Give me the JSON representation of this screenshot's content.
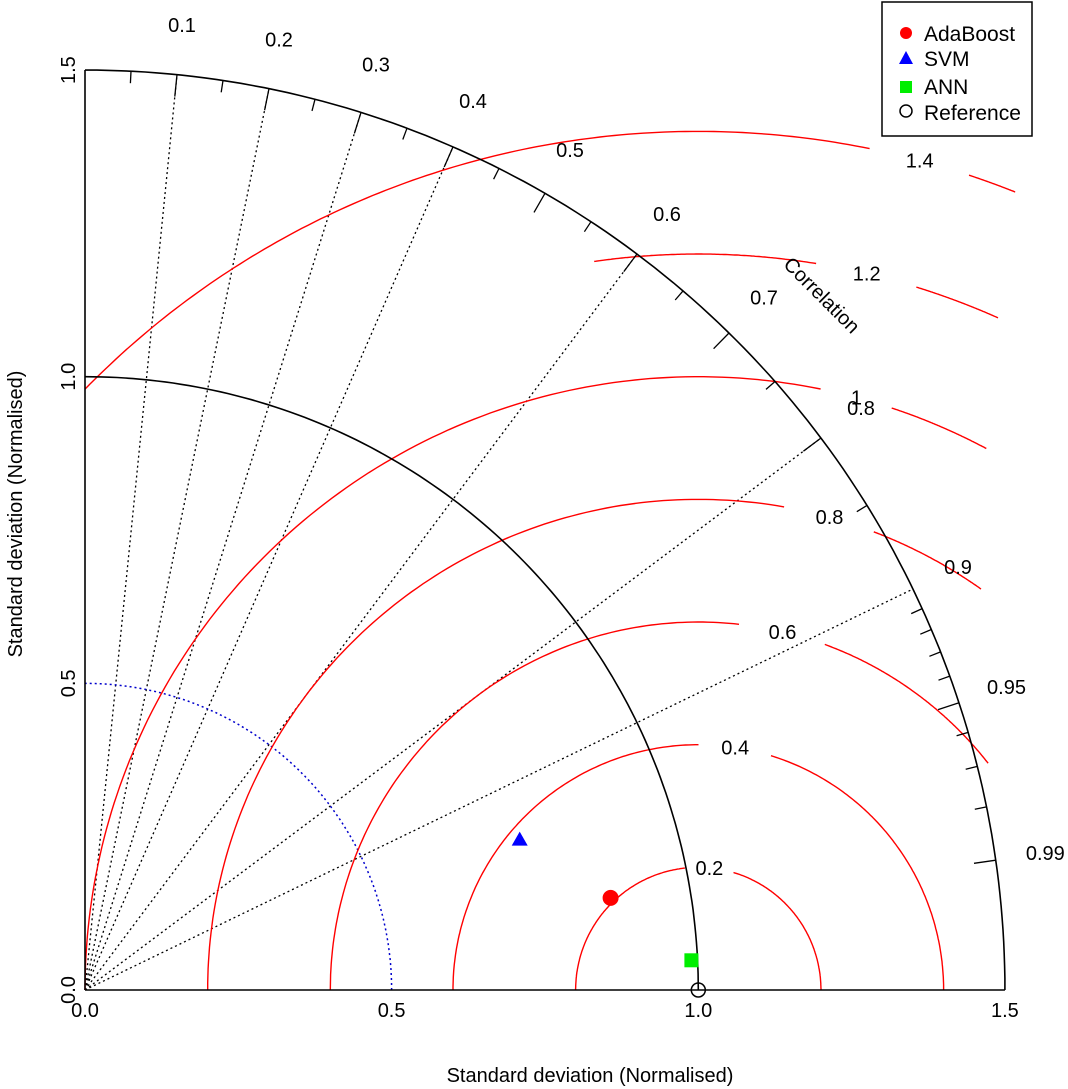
{
  "chart_data": {
    "type": "scatter",
    "subtype": "taylor-diagram",
    "xlabel": "Standard deviation (Normalised)",
    "ylabel": "Standard deviation (Normalised)",
    "sd_range": [
      0,
      1.5
    ],
    "sd_ticks": [
      "0.0",
      "0.5",
      "1.0",
      "1.5"
    ],
    "corr_axis_label": "Correlation",
    "corr_labels": [
      "0.1",
      "0.2",
      "0.3",
      "0.4",
      "0.5",
      "0.6",
      "0.7",
      "0.8",
      "0.9",
      "0.95",
      "0.99"
    ],
    "corr_lines": [
      0.1,
      0.2,
      0.3,
      0.4,
      0.6,
      0.8,
      0.9
    ],
    "rmsd_labels": [
      "0.2",
      "0.4",
      "0.6",
      "0.8",
      "1",
      "1.2",
      "1.4"
    ],
    "reference": {
      "name": "Reference",
      "sd": 1.0,
      "corr": 1.0
    },
    "series": [
      {
        "name": "AdaBoost",
        "sd": 0.87,
        "corr": 0.985,
        "color": "#ff0000",
        "marker": "circle"
      },
      {
        "name": "SVM",
        "sd": 0.75,
        "corr": 0.945,
        "color": "#0000ff",
        "marker": "triangle"
      },
      {
        "name": "ANN",
        "sd": 0.99,
        "corr": 0.9988,
        "color": "#00ee00",
        "marker": "square"
      }
    ],
    "legend_position": "top-right",
    "colors": {
      "rmsd": "#ff0000",
      "sd_reference_arc": "#0000cc",
      "axes": "#000000"
    }
  }
}
